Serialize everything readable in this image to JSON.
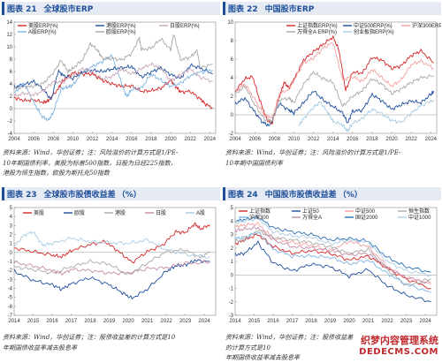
{
  "panels": [
    {
      "num": "图表 21",
      "title": "全球股市ERP",
      "unit": "",
      "note": [
        "资料来源：Wind，华创证券；注：风险溢价的计算方式是1/PE-",
        "10年期国债利率，美股为标普500指数，日股为日经225指数，",
        "港股为恒生指数，欧股为斯托克50指数"
      ]
    },
    {
      "num": "图表 22",
      "title": "中国股市ERP",
      "unit": "",
      "note": [
        "资料来源：Wind，华创证券；注：风险溢价的计算方式是1/PE-",
        "10年期中国国债利率"
      ]
    },
    {
      "num": "图表 23",
      "title": "全球股市股债收益差",
      "unit": "（%）",
      "note": [
        "资料来源：Wind，华创证券；注：股债收益差的计算方式是10",
        "年期国债收益率减去股息率"
      ]
    },
    {
      "num": "图表 24",
      "title": "中国股市股债收益差",
      "unit": "（%）",
      "note": [
        "资料来源：Wind，华创证券；注：股债收益差的计算方式是10",
        "年期国债收益率减去股息率"
      ]
    }
  ],
  "chart_data": [
    {
      "type": "line",
      "ylim": [
        -4,
        14
      ],
      "yticks": [
        -4,
        -2,
        0,
        2,
        4,
        6,
        8,
        10,
        12,
        14
      ],
      "xlim": [
        2004,
        2024.6
      ],
      "xticks": [
        2004,
        2006,
        2008,
        2010,
        2012,
        2014,
        2016,
        2018,
        2020,
        2022,
        2024
      ],
      "series": [
        {
          "name": "美股ERP(%)",
          "color": "#d62728",
          "x": [
            2004,
            2005,
            2006,
            2007,
            2007.5,
            2008.5,
            2009,
            2010,
            2011,
            2012,
            2013,
            2014,
            2015,
            2016,
            2017,
            2018,
            2019,
            2020,
            2020.5,
            2021,
            2022,
            2023,
            2023.5,
            2024.3
          ],
          "y": [
            1.8,
            1.3,
            1.4,
            1.0,
            1.3,
            3.2,
            4.6,
            5.8,
            5.6,
            5.6,
            4.6,
            4.0,
            3.6,
            3.7,
            2.8,
            2.9,
            3.3,
            4.6,
            3.6,
            2.7,
            2.8,
            1.6,
            0.8,
            0.1
          ]
        },
        {
          "name": "港股ERP(%)",
          "color": "#1f4e9c",
          "x": [
            2004,
            2005,
            2006,
            2007,
            2007.8,
            2008.5,
            2009,
            2010,
            2011,
            2012,
            2013,
            2014,
            2015,
            2016,
            2017,
            2018,
            2019,
            2020,
            2021,
            2022,
            2023,
            2024.3
          ],
          "y": [
            3.5,
            3.9,
            4.4,
            3.1,
            1.4,
            6.1,
            5.4,
            4.9,
            5.9,
            6.2,
            6.0,
            6.4,
            6.6,
            6.8,
            5.1,
            5.9,
            6.6,
            5.5,
            4.9,
            7.0,
            6.6,
            5.6
          ]
        },
        {
          "name": "A股ERP(%)",
          "color": "#7fb4e0",
          "x": [
            2004,
            2005,
            2006,
            2006.8,
            2007.5,
            2008,
            2008.8,
            2009.5,
            2010,
            2011,
            2012,
            2013,
            2014,
            2015,
            2015.5,
            2016,
            2017,
            2018,
            2019,
            2020,
            2021,
            2022,
            2023,
            2024.3
          ],
          "y": [
            2.5,
            4.2,
            1.0,
            -1.2,
            -1.9,
            -0.6,
            3.2,
            3.5,
            3.8,
            5.9,
            6.8,
            7.6,
            8.6,
            4.1,
            1.9,
            3.1,
            3.3,
            5.6,
            4.6,
            3.6,
            4.1,
            5.3,
            5.9,
            6.2
          ]
        },
        {
          "name": "日股ERP(%)",
          "color": "#c8a6b8",
          "x": [
            2004,
            2005,
            2006,
            2007,
            2008,
            2009,
            2010,
            2011,
            2012,
            2013,
            2014,
            2015,
            2016,
            2017,
            2018,
            2019,
            2020,
            2021,
            2022,
            2023,
            2024.3
          ],
          "y": [
            2.0,
            2.5,
            2.2,
            2.9,
            4.4,
            4.3,
            5.4,
            6.5,
            5.9,
            4.8,
            5.2,
            6.4,
            5.6,
            6.5,
            7.2,
            6.6,
            4.5,
            5.5,
            6.4,
            5.1,
            4.4
          ]
        },
        {
          "name": "欧股ERP(%)",
          "color": "#a9a9a9",
          "x": [
            2004,
            2005,
            2006,
            2007,
            2008,
            2008.8,
            2009.5,
            2010,
            2011,
            2011.8,
            2012.5,
            2013,
            2014,
            2015,
            2016,
            2016.8,
            2017,
            2018,
            2019,
            2020,
            2020.3,
            2021,
            2022,
            2022.7,
            2023,
            2024.3
          ],
          "y": [
            3.2,
            3.5,
            3.6,
            4.1,
            5.8,
            7.8,
            6.0,
            6.5,
            7.9,
            10.5,
            9.5,
            8.2,
            8.1,
            7.9,
            8.9,
            11.5,
            9.5,
            9.8,
            11.3,
            9.5,
            12.1,
            7.9,
            8.3,
            9.4,
            6.6,
            7.2
          ]
        }
      ]
    },
    {
      "type": "line",
      "ylim": [
        -2,
        10
      ],
      "yticks": [
        -2,
        0,
        2,
        4,
        6,
        8,
        10
      ],
      "xlim": [
        2004,
        2024.6
      ],
      "xticks": [
        2004,
        2006,
        2008,
        2010,
        2012,
        2014,
        2016,
        2018,
        2020,
        2022,
        2024
      ],
      "series": [
        {
          "name": "上证指数ERP(%)",
          "color": "#d62728",
          "x": [
            2004,
            2005,
            2005.8,
            2006.5,
            2007.3,
            2007.8,
            2008.5,
            2009,
            2009.5,
            2010,
            2011,
            2012,
            2013,
            2014,
            2014.6,
            2015.3,
            2016,
            2017,
            2018,
            2019,
            2020,
            2021,
            2022,
            2023,
            2024.3
          ],
          "y": [
            2.5,
            3.9,
            4.1,
            1.6,
            -0.6,
            -0.9,
            1.9,
            3.5,
            2.9,
            3.8,
            5.9,
            6.8,
            7.6,
            8.4,
            7.0,
            2.6,
            4.6,
            4.5,
            6.2,
            5.9,
            5.0,
            5.3,
            6.4,
            6.9,
            5.6
          ]
        },
        {
          "name": "中证500ERP(%)",
          "color": "#1f4e9c",
          "x": [
            2004,
            2005,
            2006,
            2006.8,
            2007.5,
            2008.5,
            2009.5,
            2010,
            2011,
            2012,
            2013,
            2014,
            2015,
            2015.5,
            2016,
            2017,
            2018,
            2019,
            2020,
            2021,
            2022,
            2023,
            2024,
            2024.3
          ],
          "y": [
            1.2,
            1.8,
            0.3,
            -0.8,
            -1.2,
            1.2,
            0.5,
            0.2,
            1.3,
            2.6,
            1.6,
            0.9,
            0.2,
            -0.9,
            0.4,
            0.5,
            2.2,
            1.5,
            0.6,
            1.1,
            1.5,
            1.3,
            2.2,
            2.5
          ]
        },
        {
          "name": "沪深300ERP(%)",
          "color": "#f4a0a0",
          "x": [
            2004,
            2005,
            2006,
            2007,
            2007.8,
            2008.5,
            2009.5,
            2010,
            2011,
            2012,
            2013,
            2014,
            2015,
            2016,
            2017,
            2018,
            2019,
            2020,
            2021,
            2022,
            2023,
            2024.3
          ],
          "y": [
            2.6,
            3.3,
            1.7,
            -0.1,
            -0.3,
            2.2,
            2.8,
            3.7,
            5.6,
            6.1,
            7.2,
            7.8,
            3.8,
            4.1,
            3.6,
            4.9,
            4.0,
            3.1,
            3.8,
            5.4,
            5.8,
            5.0
          ]
        },
        {
          "name": "万得全A ERP(%)",
          "color": "#a9a9a9",
          "x": [
            2004,
            2005,
            2006,
            2007,
            2007.8,
            2008.5,
            2009.5,
            2010,
            2011,
            2012,
            2013,
            2014,
            2015,
            2016,
            2017,
            2018,
            2019,
            2020,
            2021,
            2022,
            2023,
            2024.3
          ],
          "y": [
            2.2,
            3.1,
            1.1,
            -0.5,
            -0.7,
            1.6,
            1.8,
            1.3,
            3.3,
            4.6,
            3.9,
            3.5,
            0.9,
            2.0,
            2.6,
            3.9,
            3.3,
            2.3,
            2.8,
            3.5,
            4.0,
            4.2
          ]
        },
        {
          "name": "创业板指ERP(%)",
          "color": "#a9cce3",
          "x": [
            2010.5,
            2011,
            2012,
            2012.7,
            2013.5,
            2014,
            2015,
            2015.5,
            2016,
            2017,
            2018,
            2019,
            2020,
            2021,
            2022,
            2023,
            2024.3
          ],
          "y": [
            -1.2,
            -0.4,
            0.8,
            1.4,
            0.2,
            -0.7,
            -1.1,
            -1.8,
            -0.9,
            -0.4,
            0.6,
            0.1,
            -0.6,
            -0.8,
            0.2,
            1.0,
            1.6
          ]
        }
      ]
    },
    {
      "type": "line",
      "ylim": [
        -7,
        5
      ],
      "yticks": [
        -7,
        -6,
        -5,
        -4,
        -3,
        -2,
        -1,
        0,
        1,
        2,
        3,
        4,
        5
      ],
      "xlim": [
        2014,
        2024.6
      ],
      "xticks": [
        2014,
        2015,
        2016,
        2017,
        2018,
        2019,
        2020,
        2021,
        2022,
        2023,
        2024
      ],
      "series": [
        {
          "name": "美股",
          "color": "#d62728",
          "x": [
            2014,
            2015,
            2016,
            2016.5,
            2017,
            2018,
            2018.8,
            2019.5,
            2020.2,
            2021,
            2021.8,
            2022.5,
            2023,
            2023.5,
            2023.8,
            2024.3
          ],
          "y": [
            0.5,
            0.1,
            -0.3,
            -0.5,
            0.2,
            0.9,
            1.2,
            0.1,
            -1.1,
            0.1,
            0.8,
            2.3,
            2.2,
            3.2,
            2.6,
            3.1
          ]
        },
        {
          "name": "欧股",
          "color": "#1f4e9c",
          "x": [
            2014,
            2015,
            2016,
            2016.5,
            2017,
            2018,
            2019,
            2019.7,
            2020.2,
            2021,
            2022,
            2022.5,
            2023,
            2023.5,
            2024.3
          ],
          "y": [
            -2.1,
            -3.1,
            -3.6,
            -4.1,
            -3.5,
            -2.8,
            -3.6,
            -4.5,
            -5.1,
            -4.1,
            -2.1,
            -1.5,
            -1.4,
            -0.9,
            -1.0
          ]
        },
        {
          "name": "港股",
          "color": "#a9a9a9",
          "x": [
            2014,
            2015,
            2016,
            2017,
            2018,
            2019,
            2020,
            2021,
            2022,
            2023,
            2023.8,
            2024.3
          ],
          "y": [
            -1.6,
            -1.9,
            -2.3,
            -1.6,
            -1.0,
            -1.3,
            -2.5,
            -1.2,
            0.1,
            0.3,
            -0.6,
            0.1
          ]
        },
        {
          "name": "日股",
          "color": "#c38ba8",
          "x": [
            2014,
            2015,
            2016,
            2016.5,
            2017,
            2018,
            2019,
            2020,
            2021,
            2022,
            2023,
            2024.3
          ],
          "y": [
            -1.1,
            -1.5,
            -2.0,
            -2.4,
            -1.9,
            -2.0,
            -2.3,
            -2.3,
            -1.8,
            -1.7,
            -1.2,
            -1.1
          ]
        },
        {
          "name": "A股",
          "color": "#a9cce3",
          "x": [
            2014,
            2014.5,
            2015,
            2015.5,
            2016,
            2017,
            2018,
            2019,
            2020,
            2021,
            2022,
            2023,
            2024.3
          ],
          "y": [
            0.6,
            1.9,
            2.3,
            0.8,
            1.0,
            1.6,
            1.2,
            1.1,
            1.0,
            1.4,
            0.3,
            -0.2,
            -0.5
          ]
        }
      ]
    },
    {
      "type": "line",
      "ylim": [
        -3,
        5
      ],
      "yticks": [
        -3,
        -2,
        -1,
        0,
        1,
        2,
        3,
        4,
        5
      ],
      "xlim": [
        2014,
        2024.6
      ],
      "xticks": [
        2014,
        2015,
        2016,
        2017,
        2018,
        2019,
        2020,
        2021,
        2022,
        2023,
        2024
      ],
      "series": [
        {
          "name": "上证指数",
          "color": "#d62728",
          "x": [
            2014,
            2014.5,
            2015.2,
            2016,
            2017,
            2018,
            2019,
            2020,
            2021,
            2022,
            2023,
            2024.3
          ],
          "y": [
            2.3,
            2.6,
            3.0,
            2.1,
            1.6,
            1.8,
            1.6,
            1.1,
            1.4,
            0.5,
            -0.3,
            -1.0
          ]
        },
        {
          "name": "上证50",
          "color": "#1f4e9c",
          "x": [
            2014,
            2014.5,
            2015.2,
            2016,
            2017,
            2018,
            2019,
            2020,
            2021,
            2022,
            2023,
            2024.3
          ],
          "y": [
            1.5,
            1.6,
            2.4,
            0.9,
            0.3,
            0.8,
            0.6,
            -0.1,
            0.4,
            -0.8,
            -1.5,
            -2.0
          ]
        },
        {
          "name": "中证500",
          "color": "#f4a0a0",
          "x": [
            2014,
            2014.5,
            2015.2,
            2016,
            2017,
            2018,
            2019,
            2020,
            2021,
            2022,
            2023,
            2024.3
          ],
          "y": [
            3.6,
            3.7,
            3.8,
            2.7,
            2.4,
            2.2,
            1.8,
            2.5,
            2.1,
            0.6,
            -0.2,
            -0.7
          ]
        },
        {
          "name": "恒生指数",
          "color": "#a9a9a9",
          "x": [
            2014,
            2014.5,
            2015.2,
            2016,
            2017,
            2018,
            2019,
            2020,
            2021,
            2022,
            2023,
            2024.3
          ],
          "y": [
            2.5,
            2.6,
            3.3,
            2.8,
            2.6,
            2.4,
            2.1,
            1.6,
            1.9,
            0.4,
            -0.8,
            -0.3
          ]
        },
        {
          "name": "沪深300",
          "color": "#7fb4e0",
          "x": [
            2014,
            2014.5,
            2015.2,
            2016,
            2017,
            2018,
            2019,
            2020,
            2021,
            2022,
            2023,
            2024.3
          ],
          "y": [
            2.7,
            2.8,
            3.2,
            1.9,
            1.4,
            1.4,
            1.3,
            0.8,
            1.1,
            0.1,
            -0.7,
            -1.3
          ]
        },
        {
          "name": "万得全A",
          "color": "#c38ba8",
          "x": [
            2014,
            2014.5,
            2015.2,
            2016,
            2017,
            2018,
            2019,
            2020,
            2021,
            2022,
            2023,
            2024.3
          ],
          "y": [
            3.3,
            3.4,
            3.5,
            2.6,
            2.1,
            2.0,
            1.8,
            1.5,
            1.6,
            0.5,
            -0.2,
            -0.6
          ]
        },
        {
          "name": "国证2000",
          "color": "#2a6fb5",
          "x": [
            2014,
            2014.5,
            2015.2,
            2016,
            2017,
            2018,
            2019,
            2020,
            2021,
            2022,
            2023,
            2024.3
          ],
          "y": [
            4.0,
            4.1,
            4.3,
            3.5,
            3.2,
            3.0,
            2.6,
            2.7,
            2.5,
            1.3,
            0.6,
            0.2
          ]
        },
        {
          "name": "中证1000",
          "color": "#a9cce3",
          "x": [
            2014,
            2014.5,
            2015.2,
            2016,
            2017,
            2018,
            2019,
            2020,
            2021,
            2022,
            2023,
            2024.3
          ],
          "y": [
            3.9,
            4.0,
            4.2,
            3.2,
            2.9,
            2.8,
            2.3,
            2.6,
            2.4,
            1.0,
            0.3,
            0.0
          ]
        }
      ]
    }
  ],
  "watermark": {
    "line1": "织梦内容管理系统",
    "line2": "DEDECMS.COM"
  }
}
